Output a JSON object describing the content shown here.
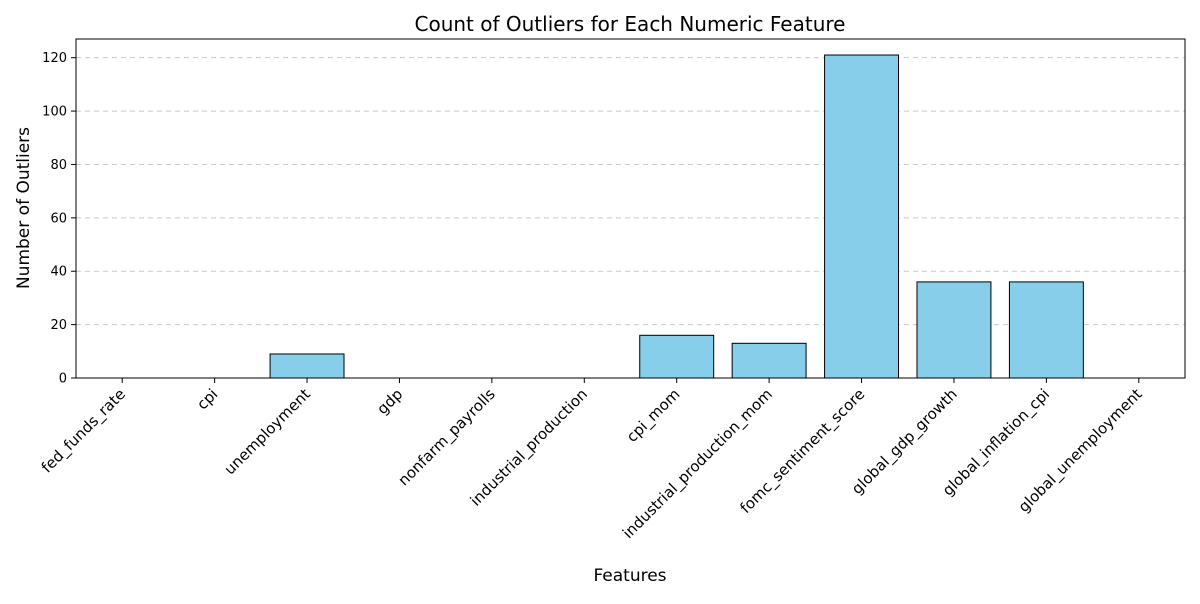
{
  "chart_data": {
    "type": "bar",
    "title": "Count of Outliers for Each Numeric Feature",
    "xlabel": "Features",
    "ylabel": "Number of Outliers",
    "categories": [
      "fed_funds_rate",
      "cpi",
      "unemployment",
      "gdp",
      "nonfarm_payrolls",
      "industrial_production",
      "cpi_mom",
      "industrial_production_mom",
      "fomc_sentiment_score",
      "global_gdp_growth",
      "global_inflation_cpi",
      "global_unemployment"
    ],
    "values": [
      0,
      0,
      9,
      0,
      0,
      0,
      16,
      13,
      121,
      36,
      36,
      0
    ],
    "ylim": [
      0,
      127
    ],
    "yticks": [
      0,
      20,
      40,
      60,
      80,
      100,
      120
    ],
    "grid": "y-dashed",
    "legend": "none",
    "colors": {
      "bar_fill": "#87ceeb",
      "bar_edge": "#000000",
      "grid": "#c8c8c8"
    }
  }
}
